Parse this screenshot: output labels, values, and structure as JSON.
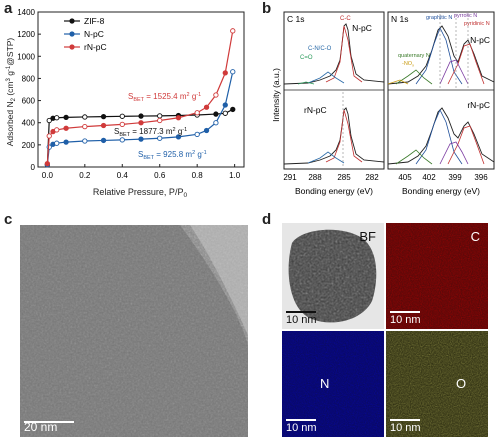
{
  "panels": {
    "a": "a",
    "b": "b",
    "c": "c",
    "d": "d"
  },
  "panel_a": {
    "y_label": "Adsorbed N",
    "y_label_sub": "2",
    "y_label_rest": " (cm",
    "y_label_sup": "3",
    "y_label_rest2": " g",
    "y_label_sup2": "-1",
    "y_label_end": "@STP)",
    "x_label": "Relative Pressure, P/P",
    "x_label_sub": "0",
    "legend": [
      "ZIF-8",
      "N-pC",
      "rN-pC"
    ],
    "annotations": {
      "rnpc": "S",
      "rnpc_sub": "BET",
      "rnpc_val": " = 1525.4 m",
      "zif": "S",
      "zif_sub": "BET",
      "zif_val": " = 1877.3 m",
      "npc": "S",
      "npc_sub": "BET",
      "npc_val": " = 925.8 m",
      "unit_sup": "2",
      "unit_g": " g",
      "unit_sup2": "-1"
    }
  },
  "panel_b": {
    "y_label": "Intensity (a.u.)",
    "c1s": {
      "title": "C 1s",
      "x_label": "Bonding energy (eV)",
      "top_sample": "N-pC",
      "bottom_sample": "rN-pC",
      "peaks": [
        "C-C",
        "C-N/C-O",
        "C=O"
      ]
    },
    "n1s": {
      "title": "N 1s",
      "x_label": "Bonding energy (eV)",
      "top_sample": "N-pC",
      "bottom_sample": "rN-pC",
      "peaks": [
        "graphitic N",
        "pyrrolic N",
        "pyridinic N",
        "quaternary N",
        "-NO",
        "x"
      ]
    }
  },
  "panel_c": {
    "scale": "20 nm"
  },
  "panel_d": {
    "maps": [
      {
        "label": "BF",
        "scale": "10 nm"
      },
      {
        "label": "C",
        "scale": "10 nm"
      },
      {
        "label": "N",
        "scale": "10 nm"
      },
      {
        "label": "O",
        "scale": "10 nm"
      }
    ]
  },
  "chart_data": [
    {
      "type": "line",
      "title": "",
      "xlabel": "Relative Pressure, P/P0",
      "ylabel": "Adsorbed N2 (cm3 g-1 @STP)",
      "xlim": [
        -0.05,
        1.05
      ],
      "ylim": [
        0,
        1400
      ],
      "x_ticks": [
        0.0,
        0.2,
        0.4,
        0.6,
        0.8,
        1.0
      ],
      "y_ticks": [
        0,
        200,
        400,
        600,
        800,
        1000,
        1200,
        1400
      ],
      "legend_position": "top-left",
      "colors": {
        "ZIF-8": "#111111",
        "N-pC": "#1f5fa8",
        "rN-pC": "#d03a3a"
      },
      "series": [
        {
          "name": "ZIF-8",
          "x": [
            0.0,
            0.01,
            0.03,
            0.05,
            0.1,
            0.2,
            0.3,
            0.4,
            0.5,
            0.6,
            0.7,
            0.8,
            0.9,
            0.95,
            0.99
          ],
          "y": [
            20,
            420,
            440,
            445,
            448,
            452,
            455,
            458,
            460,
            462,
            465,
            470,
            478,
            485,
            520
          ]
        },
        {
          "name": "N-pC",
          "x": [
            0.0,
            0.01,
            0.03,
            0.05,
            0.1,
            0.2,
            0.3,
            0.4,
            0.5,
            0.6,
            0.7,
            0.8,
            0.85,
            0.9,
            0.95,
            0.99
          ],
          "y": [
            20,
            180,
            205,
            215,
            225,
            235,
            240,
            245,
            252,
            260,
            272,
            295,
            330,
            400,
            560,
            860
          ]
        },
        {
          "name": "rN-pC",
          "x": [
            0.0,
            0.01,
            0.03,
            0.05,
            0.1,
            0.2,
            0.3,
            0.4,
            0.5,
            0.6,
            0.7,
            0.8,
            0.85,
            0.9,
            0.95,
            0.99
          ],
          "y": [
            30,
            280,
            320,
            335,
            350,
            365,
            375,
            385,
            400,
            420,
            445,
            490,
            540,
            650,
            850,
            1230
          ]
        }
      ]
    }
  ]
}
